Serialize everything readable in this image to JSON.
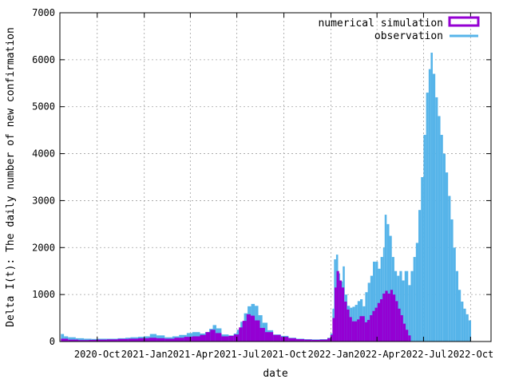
{
  "chart_data": {
    "type": "bar",
    "xlabel": "date",
    "ylabel": "Delta I(t): The daily number of new confirmation",
    "xlim": [
      "2020-07-20",
      "2022-11-10"
    ],
    "ylim": [
      0,
      7000
    ],
    "grid": true,
    "legend_position": "top-right",
    "x_ticks": [
      "2020-10-01",
      "2021-01-01",
      "2021-04-01",
      "2021-07-01",
      "2021-10-01",
      "2022-01-01",
      "2022-04-01",
      "2022-07-01",
      "2022-10-01"
    ],
    "x_tick_labels": [
      "2020-Oct",
      "2021-Jan",
      "2021-Apr",
      "2021-Jul",
      "2021-Oct",
      "2022-Jan",
      "2022-Apr",
      "2022-Jul",
      "2022-Oct"
    ],
    "y_ticks": [
      0,
      1000,
      2000,
      3000,
      4000,
      5000,
      6000,
      7000
    ],
    "y_tick_labels": [
      "0",
      "1000",
      "2000",
      "3000",
      "4000",
      "5000",
      "6000",
      "7000"
    ],
    "series": [
      {
        "name": "numerical simulation",
        "style": "filled-bars",
        "color": "#9400d3",
        "points": [
          [
            "2020-07-22",
            60
          ],
          [
            "2020-08-05",
            40
          ],
          [
            "2020-08-25",
            30
          ],
          [
            "2020-09-15",
            35
          ],
          [
            "2020-10-01",
            40
          ],
          [
            "2020-10-20",
            45
          ],
          [
            "2020-11-10",
            55
          ],
          [
            "2020-12-01",
            60
          ],
          [
            "2020-12-20",
            70
          ],
          [
            "2021-01-10",
            80
          ],
          [
            "2021-01-25",
            70
          ],
          [
            "2021-02-10",
            60
          ],
          [
            "2021-03-01",
            80
          ],
          [
            "2021-03-20",
            100
          ],
          [
            "2021-04-05",
            110
          ],
          [
            "2021-04-20",
            140
          ],
          [
            "2021-05-01",
            200
          ],
          [
            "2021-05-10",
            250
          ],
          [
            "2021-05-20",
            180
          ],
          [
            "2021-06-01",
            110
          ],
          [
            "2021-06-15",
            120
          ],
          [
            "2021-06-25",
            150
          ],
          [
            "2021-07-05",
            300
          ],
          [
            "2021-07-12",
            440
          ],
          [
            "2021-07-20",
            580
          ],
          [
            "2021-07-28",
            550
          ],
          [
            "2021-08-05",
            450
          ],
          [
            "2021-08-15",
            290
          ],
          [
            "2021-08-25",
            200
          ],
          [
            "2021-09-10",
            140
          ],
          [
            "2021-09-25",
            100
          ],
          [
            "2021-10-10",
            70
          ],
          [
            "2021-10-25",
            50
          ],
          [
            "2021-11-10",
            40
          ],
          [
            "2021-11-25",
            35
          ],
          [
            "2021-12-10",
            40
          ],
          [
            "2021-12-25",
            70
          ],
          [
            "2021-12-31",
            140
          ],
          [
            "2022-01-04",
            500
          ],
          [
            "2022-01-08",
            1150
          ],
          [
            "2022-01-12",
            1500
          ],
          [
            "2022-01-17",
            1300
          ],
          [
            "2022-01-22",
            1150
          ],
          [
            "2022-01-27",
            850
          ],
          [
            "2022-02-01",
            680
          ],
          [
            "2022-02-06",
            520
          ],
          [
            "2022-02-11",
            430
          ],
          [
            "2022-02-16",
            430
          ],
          [
            "2022-02-21",
            470
          ],
          [
            "2022-02-26",
            540
          ],
          [
            "2022-03-03",
            540
          ],
          [
            "2022-03-08",
            410
          ],
          [
            "2022-03-13",
            460
          ],
          [
            "2022-03-18",
            560
          ],
          [
            "2022-03-23",
            650
          ],
          [
            "2022-03-28",
            720
          ],
          [
            "2022-04-02",
            820
          ],
          [
            "2022-04-07",
            900
          ],
          [
            "2022-04-12",
            1020
          ],
          [
            "2022-04-17",
            1080
          ],
          [
            "2022-04-22",
            1020
          ],
          [
            "2022-04-27",
            1100
          ],
          [
            "2022-05-02",
            1000
          ],
          [
            "2022-05-07",
            860
          ],
          [
            "2022-05-12",
            700
          ],
          [
            "2022-05-17",
            560
          ],
          [
            "2022-05-22",
            380
          ],
          [
            "2022-05-27",
            250
          ],
          [
            "2022-06-01",
            130
          ]
        ]
      },
      {
        "name": "observation",
        "style": "bars",
        "color": "#56b4e9",
        "points": [
          [
            "2020-07-22",
            160
          ],
          [
            "2020-07-28",
            110
          ],
          [
            "2020-08-05",
            90
          ],
          [
            "2020-08-20",
            70
          ],
          [
            "2020-09-05",
            60
          ],
          [
            "2020-09-20",
            55
          ],
          [
            "2020-10-01",
            60
          ],
          [
            "2020-10-20",
            60
          ],
          [
            "2020-11-10",
            70
          ],
          [
            "2020-11-25",
            80
          ],
          [
            "2020-12-05",
            90
          ],
          [
            "2020-12-20",
            100
          ],
          [
            "2021-01-01",
            110
          ],
          [
            "2021-01-12",
            160
          ],
          [
            "2021-01-25",
            130
          ],
          [
            "2021-02-10",
            90
          ],
          [
            "2021-02-25",
            110
          ],
          [
            "2021-03-10",
            140
          ],
          [
            "2021-03-25",
            180
          ],
          [
            "2021-04-05",
            200
          ],
          [
            "2021-04-20",
            170
          ],
          [
            "2021-04-30",
            200
          ],
          [
            "2021-05-08",
            270
          ],
          [
            "2021-05-15",
            350
          ],
          [
            "2021-05-22",
            280
          ],
          [
            "2021-06-01",
            150
          ],
          [
            "2021-06-15",
            130
          ],
          [
            "2021-06-25",
            170
          ],
          [
            "2021-07-01",
            250
          ],
          [
            "2021-07-08",
            420
          ],
          [
            "2021-07-15",
            600
          ],
          [
            "2021-07-22",
            750
          ],
          [
            "2021-07-29",
            800
          ],
          [
            "2021-08-05",
            760
          ],
          [
            "2021-08-12",
            560
          ],
          [
            "2021-08-20",
            400
          ],
          [
            "2021-08-30",
            240
          ],
          [
            "2021-09-10",
            150
          ],
          [
            "2021-09-25",
            120
          ],
          [
            "2021-10-10",
            80
          ],
          [
            "2021-10-25",
            60
          ],
          [
            "2021-11-10",
            50
          ],
          [
            "2021-11-25",
            45
          ],
          [
            "2021-12-10",
            50
          ],
          [
            "2021-12-25",
            80
          ],
          [
            "2021-12-31",
            170
          ],
          [
            "2022-01-04",
            700
          ],
          [
            "2022-01-07",
            1750
          ],
          [
            "2022-01-11",
            1850
          ],
          [
            "2022-01-15",
            1450
          ],
          [
            "2022-01-19",
            1280
          ],
          [
            "2022-01-24",
            1600
          ],
          [
            "2022-01-28",
            1000
          ],
          [
            "2022-02-02",
            760
          ],
          [
            "2022-02-07",
            720
          ],
          [
            "2022-02-12",
            740
          ],
          [
            "2022-02-17",
            780
          ],
          [
            "2022-02-22",
            860
          ],
          [
            "2022-02-27",
            900
          ],
          [
            "2022-03-04",
            750
          ],
          [
            "2022-03-09",
            1050
          ],
          [
            "2022-03-14",
            1250
          ],
          [
            "2022-03-19",
            1400
          ],
          [
            "2022-03-24",
            1700
          ],
          [
            "2022-03-29",
            1700
          ],
          [
            "2022-04-03",
            1550
          ],
          [
            "2022-04-08",
            1800
          ],
          [
            "2022-04-13",
            2000
          ],
          [
            "2022-04-16",
            2700
          ],
          [
            "2022-04-20",
            2500
          ],
          [
            "2022-04-25",
            2250
          ],
          [
            "2022-04-30",
            1800
          ],
          [
            "2022-05-05",
            1500
          ],
          [
            "2022-05-10",
            1400
          ],
          [
            "2022-05-15",
            1500
          ],
          [
            "2022-05-20",
            1300
          ],
          [
            "2022-05-25",
            1500
          ],
          [
            "2022-06-01",
            1200
          ],
          [
            "2022-06-06",
            1500
          ],
          [
            "2022-06-11",
            1800
          ],
          [
            "2022-06-16",
            2100
          ],
          [
            "2022-06-21",
            2800
          ],
          [
            "2022-06-26",
            3500
          ],
          [
            "2022-07-01",
            4400
          ],
          [
            "2022-07-06",
            5300
          ],
          [
            "2022-07-11",
            5800
          ],
          [
            "2022-07-15",
            6150
          ],
          [
            "2022-07-19",
            5700
          ],
          [
            "2022-07-24",
            5200
          ],
          [
            "2022-07-29",
            4800
          ],
          [
            "2022-08-03",
            4400
          ],
          [
            "2022-08-08",
            4000
          ],
          [
            "2022-08-13",
            3600
          ],
          [
            "2022-08-18",
            3100
          ],
          [
            "2022-08-23",
            2600
          ],
          [
            "2022-08-28",
            2000
          ],
          [
            "2022-09-02",
            1500
          ],
          [
            "2022-09-07",
            1100
          ],
          [
            "2022-09-12",
            850
          ],
          [
            "2022-09-17",
            700
          ],
          [
            "2022-09-22",
            580
          ],
          [
            "2022-09-27",
            450
          ]
        ]
      }
    ]
  }
}
